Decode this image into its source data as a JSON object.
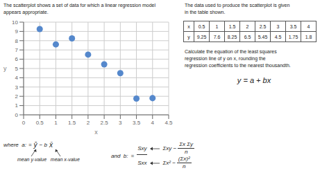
{
  "chart_data": {
    "type": "scatter",
    "x_label": "x",
    "y_label": "y",
    "x": [
      0.5,
      1,
      1.5,
      2,
      2.5,
      3,
      3.5,
      4
    ],
    "values": [
      9.25,
      7.6,
      8.25,
      6.5,
      5.45,
      4.5,
      1.75,
      1.8
    ],
    "color": "#5588cc",
    "xlim": [
      0,
      4.5
    ],
    "ylim": [
      0,
      10
    ],
    "xticks": [
      0,
      0.5,
      1,
      1.5,
      2,
      2.5,
      3,
      3.5,
      4,
      4.5
    ],
    "yticks": [
      0,
      1,
      2,
      3,
      4,
      5,
      6,
      7,
      8,
      9,
      10
    ],
    "grid": true,
    "annotations": [
      "The scatterplot shows a set of data for which a linear regression model",
      "appears appropriate.",
      "The data used to produce the scatterplot is given",
      "in the table shown.",
      "Calculate the equation of the least squares",
      "regression line of y on x, rounding the",
      "regression coefficients to the nearest thousandth.",
      "y = a + bx",
      "where  a:",
      "=",
      "ȳ",
      "− b",
      "x̄",
      "mean y-value   mean x-value",
      "and  b:",
      "=",
      "Sxy",
      "Sxx",
      "Σxy −",
      "Σx Σy",
      "n",
      "Σx² −",
      "(Σx)²",
      "n"
    ]
  }
}
